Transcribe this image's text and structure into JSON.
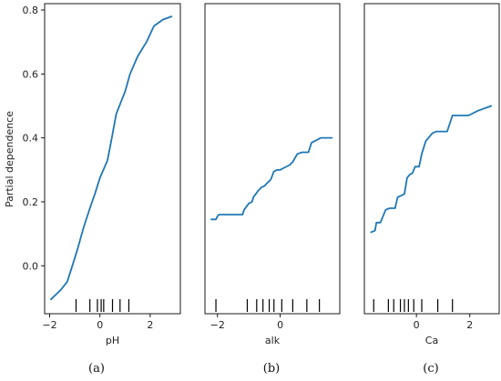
{
  "figure": {
    "ylabel": "Partial dependence",
    "line_color": "#1f77b4",
    "text_color": "#222222"
  },
  "chart_data": [
    {
      "type": "line",
      "caption": "(a)",
      "xlabel": "pH",
      "ylabel": "Partial dependence",
      "xlim": [
        -2.2,
        3.2
      ],
      "ylim": [
        -0.15,
        0.82
      ],
      "x_ticks": [
        -2,
        0,
        2
      ],
      "x_tick_labels": [
        "−2",
        "0",
        "2"
      ],
      "y_ticks": [
        0.0,
        0.2,
        0.4,
        0.6,
        0.8
      ],
      "y_tick_labels": [
        "0.0",
        "0.2",
        "0.4",
        "0.6",
        "0.8"
      ],
      "x": [
        -1.95,
        -1.55,
        -1.3,
        -1.1,
        -0.9,
        -0.65,
        -0.4,
        -0.2,
        0.0,
        0.3,
        0.45,
        0.65,
        1.0,
        1.2,
        1.5,
        1.85,
        2.15,
        2.5,
        2.85
      ],
      "y": [
        -0.105,
        -0.075,
        -0.05,
        0.0,
        0.05,
        0.12,
        0.18,
        0.225,
        0.275,
        0.33,
        0.39,
        0.475,
        0.545,
        0.6,
        0.655,
        0.7,
        0.75,
        0.77,
        0.78
      ],
      "rug": [
        -0.95,
        -0.4,
        -0.1,
        0.05,
        0.15,
        0.5,
        0.8,
        1.15
      ]
    },
    {
      "type": "line",
      "caption": "(b)",
      "xlabel": "alk",
      "xlim": [
        -2.4,
        1.9
      ],
      "ylim": [
        -0.15,
        0.82
      ],
      "x_ticks": [
        -2,
        0
      ],
      "x_tick_labels": [
        "−2",
        "0"
      ],
      "x": [
        -2.2,
        -2.05,
        -2.0,
        -1.95,
        -1.2,
        -1.15,
        -1.0,
        -0.9,
        -0.85,
        -0.7,
        -0.6,
        -0.5,
        -0.4,
        -0.3,
        -0.2,
        -0.1,
        0.0,
        0.1,
        0.3,
        0.4,
        0.55,
        0.7,
        0.9,
        1.0,
        1.3,
        1.65
      ],
      "y": [
        0.145,
        0.145,
        0.155,
        0.16,
        0.16,
        0.175,
        0.195,
        0.2,
        0.215,
        0.235,
        0.245,
        0.25,
        0.26,
        0.27,
        0.295,
        0.3,
        0.3,
        0.305,
        0.315,
        0.325,
        0.35,
        0.355,
        0.355,
        0.385,
        0.4,
        0.4
      ],
      "rug": [
        -2.05,
        -1.05,
        -0.75,
        -0.55,
        -0.35,
        -0.2,
        0.05,
        0.4,
        0.85,
        1.25
      ]
    },
    {
      "type": "line",
      "caption": "(c)",
      "xlabel": "Ca",
      "xlim": [
        -1.95,
        3.1
      ],
      "ylim": [
        -0.15,
        0.82
      ],
      "x_ticks": [
        0,
        2
      ],
      "x_tick_labels": [
        "0",
        "2"
      ],
      "x": [
        -1.7,
        -1.55,
        -1.5,
        -1.35,
        -1.15,
        -1.0,
        -0.8,
        -0.7,
        -0.55,
        -0.45,
        -0.35,
        -0.25,
        -0.15,
        -0.05,
        0.1,
        0.2,
        0.35,
        0.5,
        0.6,
        0.75,
        0.95,
        1.15,
        1.35,
        1.6,
        1.95,
        2.3,
        2.8
      ],
      "y": [
        0.105,
        0.11,
        0.135,
        0.135,
        0.175,
        0.18,
        0.18,
        0.215,
        0.22,
        0.225,
        0.275,
        0.285,
        0.29,
        0.31,
        0.31,
        0.35,
        0.39,
        0.405,
        0.415,
        0.42,
        0.42,
        0.42,
        0.47,
        0.47,
        0.47,
        0.485,
        0.5
      ],
      "rug": [
        -1.6,
        -1.05,
        -0.85,
        -0.6,
        -0.45,
        -0.3,
        -0.1,
        0.2,
        0.8,
        1.35
      ]
    }
  ]
}
